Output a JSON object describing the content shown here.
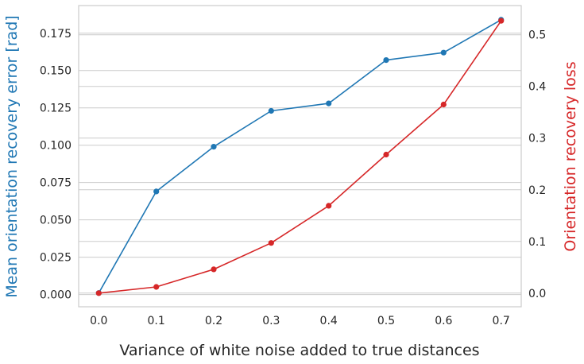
{
  "chart_data": {
    "type": "line",
    "xlabel": "Variance of white noise added to true distances",
    "ylabel_left": "Mean orientation recovery error [rad]",
    "ylabel_right": "Orientation recovery loss",
    "x": [
      0.0,
      0.1,
      0.2,
      0.3,
      0.4,
      0.5,
      0.6,
      0.7
    ],
    "xlim": [
      -0.035,
      0.735
    ],
    "x_ticks": [
      "0.0",
      "0.1",
      "0.2",
      "0.3",
      "0.4",
      "0.5",
      "0.6",
      "0.7"
    ],
    "ylim_left": [
      -0.0082,
      0.1935
    ],
    "ylim_right": [
      -0.0265,
      0.5565
    ],
    "y_ticks_left": [
      "0.000",
      "0.025",
      "0.050",
      "0.075",
      "0.100",
      "0.125",
      "0.150",
      "0.175"
    ],
    "y_ticks_right": [
      "0.0",
      "0.1",
      "0.2",
      "0.3",
      "0.4",
      "0.5"
    ],
    "grid": true,
    "series": [
      {
        "axis": "left",
        "color": "#1f77b4",
        "values": [
          0.001,
          0.069,
          0.099,
          0.123,
          0.128,
          0.157,
          0.162,
          0.184
        ]
      },
      {
        "axis": "right",
        "color": "#d62728",
        "values": [
          0.0,
          0.012,
          0.046,
          0.097,
          0.169,
          0.268,
          0.365,
          0.527
        ]
      }
    ]
  }
}
